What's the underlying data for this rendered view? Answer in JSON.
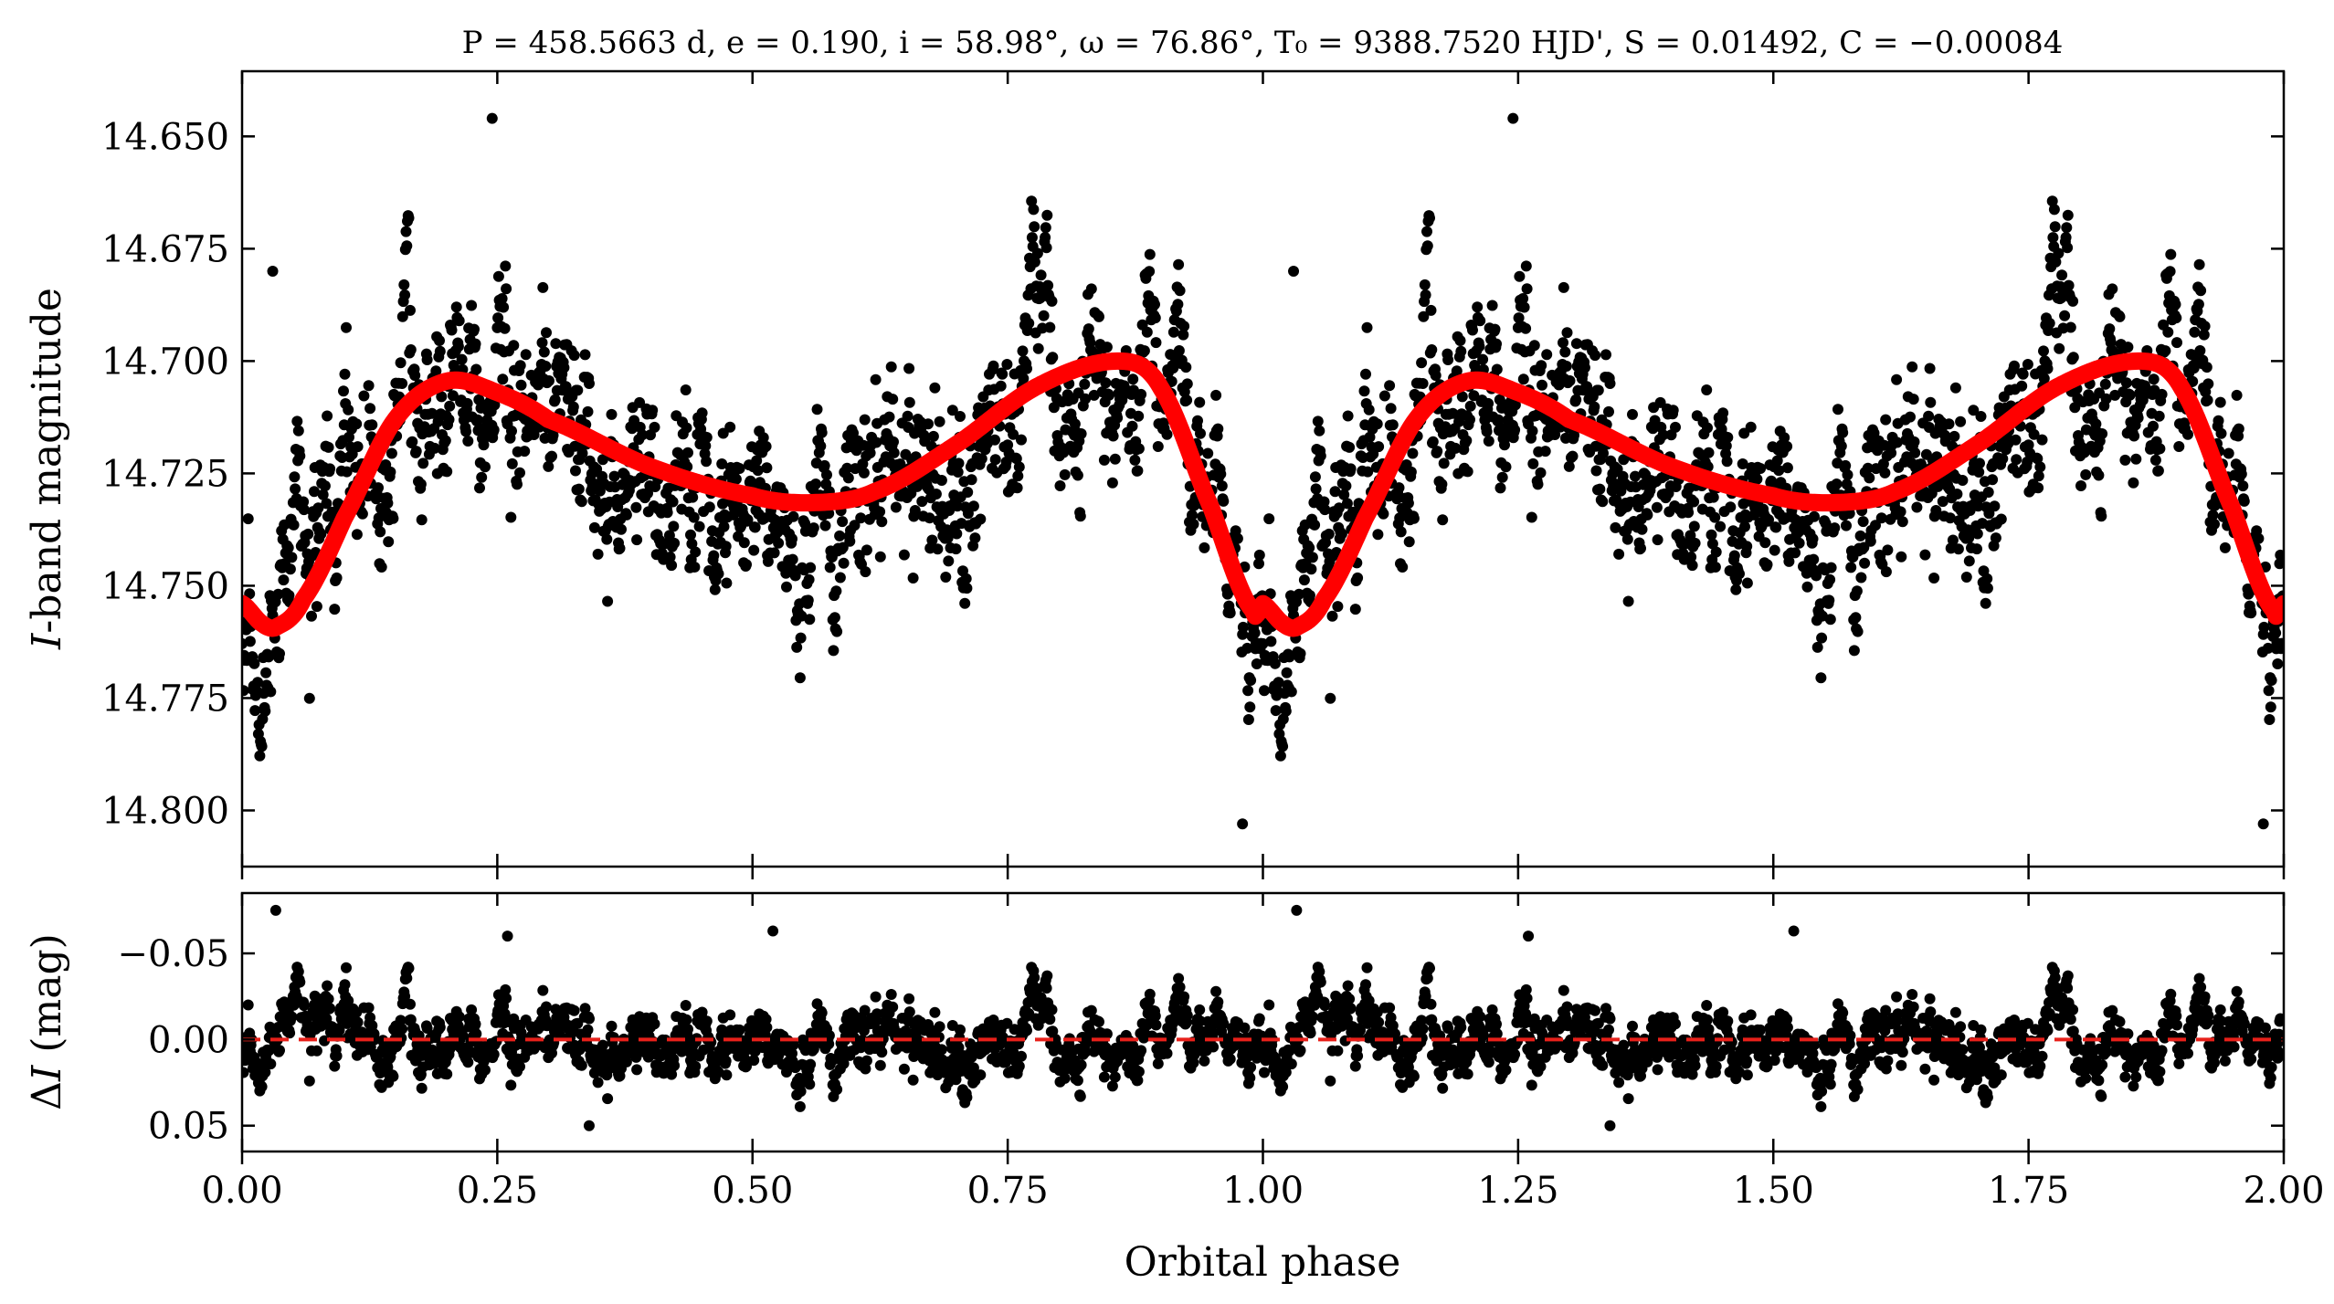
{
  "figure": {
    "title": "P = 458.5663 d, e = 0.190, i = 58.98°, ω = 76.86°, T₀ = 9388.7520 HJD', S = 0.01492, C = −0.00084"
  },
  "colors": {
    "points": "#000000",
    "model": "#ff0000",
    "zero_line": "#e8201a"
  },
  "chart_data": [
    {
      "type": "scatter",
      "panel": "top",
      "title": "P = 458.5663 d, e = 0.190, i = 58.98°, ω = 76.86°, T₀ = 9388.7520 HJD', S = 0.01492, C = −0.00084",
      "xlabel": "",
      "ylabel": "I-band magnitude",
      "ylabel_parts": {
        "italic": "I",
        "rest": "-band magnitude"
      },
      "xlim": [
        0.0,
        2.0
      ],
      "ylim": [
        14.8125,
        14.6355
      ],
      "y_inverted": true,
      "y_ticks": [
        "14.650",
        "14.675",
        "14.700",
        "14.725",
        "14.750",
        "14.775",
        "14.800"
      ],
      "y_tick_values": [
        14.65,
        14.675,
        14.7,
        14.725,
        14.75,
        14.775,
        14.8
      ],
      "x_ticks": [
        0.0,
        0.25,
        0.5,
        0.75,
        1.0,
        1.25,
        1.5,
        1.75,
        2.0
      ],
      "grid": false,
      "series": [
        {
          "kind": "points",
          "note": "dense scatter of observed magnitudes, ~±0.03 mag around the model curve; phase 0–1 repeated for 1–2",
          "approx_envelope": {
            "phase": [
              0.0,
              0.03,
              0.1,
              0.2,
              0.3,
              0.45,
              0.56,
              0.7,
              0.86,
              0.95,
              1.0
            ],
            "min_mag": [
              14.725,
              14.73,
              14.68,
              14.66,
              14.675,
              14.685,
              14.695,
              14.68,
              14.66,
              14.685,
              14.725
            ],
            "max_mag": [
              14.785,
              14.8,
              14.79,
              14.76,
              14.765,
              14.77,
              14.78,
              14.77,
              14.745,
              14.785,
              14.8
            ]
          },
          "outliers": [
            [
              0.245,
              14.646
            ],
            [
              1.245,
              14.646
            ],
            [
              0.03,
              14.68
            ],
            [
              1.03,
              14.68
            ],
            [
              0.98,
              14.803
            ],
            [
              1.98,
              14.803
            ]
          ]
        },
        {
          "kind": "model",
          "phase": [
            0.0,
            0.02,
            0.035,
            0.06,
            0.1,
            0.15,
            0.2,
            0.25,
            0.3,
            0.4,
            0.5,
            0.56,
            0.62,
            0.7,
            0.78,
            0.86,
            0.9,
            0.95,
            0.99,
            1.0
          ],
          "mag": [
            14.754,
            14.7585,
            14.759,
            14.753,
            14.735,
            14.713,
            14.7045,
            14.707,
            14.713,
            14.7235,
            14.73,
            14.7315,
            14.729,
            14.7185,
            14.7055,
            14.7,
            14.706,
            14.733,
            14.7555,
            14.754
          ]
        }
      ]
    },
    {
      "type": "scatter",
      "panel": "bottom",
      "xlabel": "Orbital phase",
      "ylabel": "ΔI (mag)",
      "ylabel_parts": {
        "delta": "Δ",
        "italic": "I",
        "rest": " (mag)"
      },
      "xlim": [
        0.0,
        2.0
      ],
      "ylim": [
        0.065,
        -0.085
      ],
      "y_inverted": true,
      "y_ticks": [
        "−0.05",
        "0.00",
        "0.05"
      ],
      "y_tick_values": [
        -0.05,
        0.0,
        0.05
      ],
      "x_ticks": [
        "0.00",
        "0.25",
        "0.50",
        "0.75",
        "1.00",
        "1.25",
        "1.50",
        "1.75",
        "2.00"
      ],
      "x_tick_values": [
        0.0,
        0.25,
        0.5,
        0.75,
        1.0,
        1.25,
        1.5,
        1.75,
        2.0
      ],
      "grid": false,
      "series": [
        {
          "kind": "points",
          "note": "residuals, mostly within ±0.04 mag",
          "outliers": [
            [
              0.033,
              -0.075
            ],
            [
              1.033,
              -0.075
            ],
            [
              0.26,
              -0.06
            ],
            [
              0.52,
              -0.063
            ],
            [
              1.26,
              -0.06
            ],
            [
              1.52,
              -0.063
            ],
            [
              0.34,
              0.05
            ],
            [
              1.34,
              0.05
            ]
          ]
        },
        {
          "kind": "zero_line",
          "value": 0.0,
          "style": "dashed"
        }
      ]
    }
  ]
}
